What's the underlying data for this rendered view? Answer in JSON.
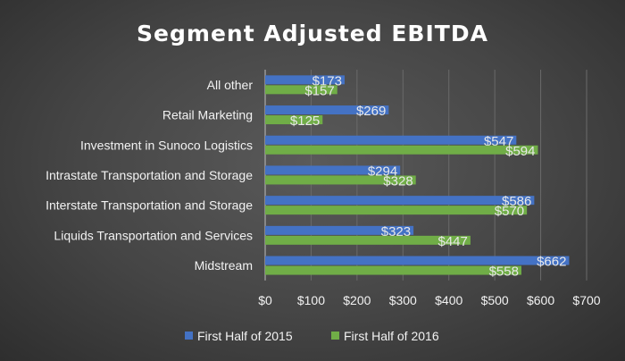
{
  "chart_data": {
    "type": "bar",
    "orientation": "horizontal",
    "title": "Segment Adjusted EBITDA",
    "categories": [
      "All other",
      "Retail Marketing",
      "Investment in Sunoco Logistics",
      "Intrastate Transportation and Storage",
      "Interstate Transportation and Storage",
      "Liquids Transportation and Services",
      "Midstream"
    ],
    "series": [
      {
        "name": "First Half of 2015",
        "color": "#4472c4",
        "values": [
          173,
          269,
          547,
          294,
          586,
          323,
          662
        ],
        "labels": [
          "$173",
          "$269",
          "$547",
          "$294",
          "$586",
          "$323",
          "$662"
        ]
      },
      {
        "name": "First Half of 2016",
        "color": "#70ad47",
        "values": [
          157,
          125,
          594,
          328,
          570,
          447,
          558
        ],
        "labels": [
          "$157",
          "$125",
          "$594",
          "$328",
          "$570",
          "$447",
          "$558"
        ]
      }
    ],
    "xlim": [
      0,
      700
    ],
    "xticks": [
      0,
      100,
      200,
      300,
      400,
      500,
      600,
      700
    ],
    "xtick_labels": [
      "$0",
      "$100",
      "$200",
      "$300",
      "$400",
      "$500",
      "$600",
      "$700"
    ],
    "grid": true,
    "legend": "bottom"
  }
}
